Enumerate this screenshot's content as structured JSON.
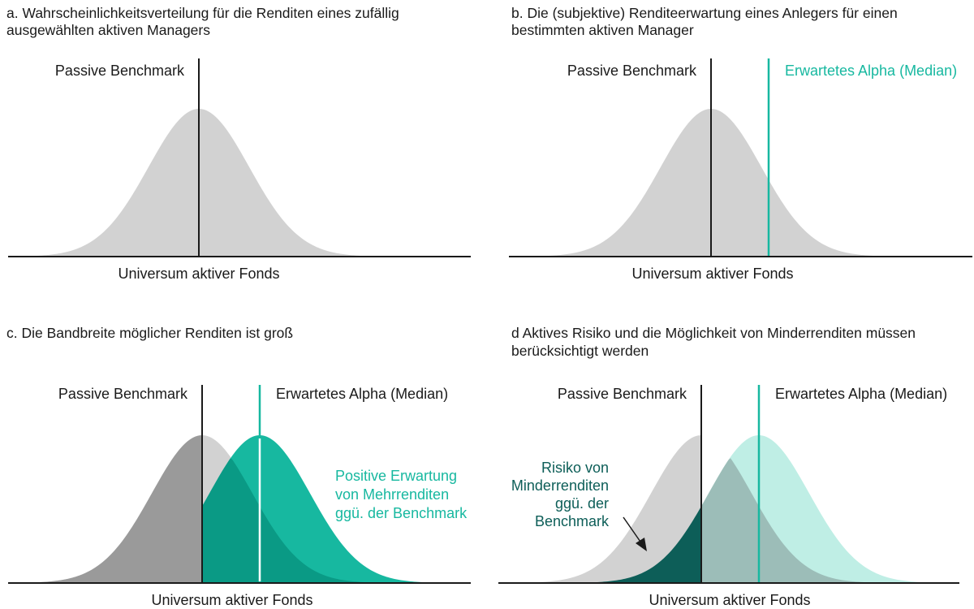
{
  "panels": [
    {
      "title_line1": "a. Wahrscheinlichkeitsverteilung für die Renditen eines zufällig",
      "title_line2": "ausgewählten aktiven Managers",
      "benchmark_label": "Passive Benchmark",
      "xaxis_label": "Universum aktiver Fonds"
    },
    {
      "title_line1": "b. Die (subjektive) Renditeerwartung eines Anlegers für einen",
      "title_line2": "bestimmten aktiven Manager",
      "benchmark_label": "Passive Benchmark",
      "alpha_label": "Erwartetes Alpha (Median)",
      "xaxis_label": "Universum aktiver Fonds"
    },
    {
      "title_line1": "c. Die Bandbreite möglicher Renditen ist groß",
      "benchmark_label": "Passive Benchmark",
      "alpha_label": "Erwartetes Alpha (Median)",
      "positive_line1": "Positive Erwartung",
      "positive_line2": "von Mehrrenditen",
      "positive_line3": "ggü. der Benchmark",
      "xaxis_label": "Universum aktiver Fonds"
    },
    {
      "title_line1": "d Aktives Risiko und die Möglichkeit von Minderrenditen müssen",
      "title_line2": "berücksichtigt werden",
      "benchmark_label": "Passive Benchmark",
      "alpha_label": "Erwartetes Alpha (Median)",
      "risk_line1": "Risiko von",
      "risk_line2": "Minderrenditen",
      "risk_line3": "ggü. der",
      "risk_line4": "Benchmark",
      "xaxis_label": "Universum aktiver Fonds"
    }
  ],
  "colors": {
    "gray": "#d2d2d2",
    "gray_dark": "#9a9a9a",
    "teal": "#17b8a0",
    "teal_mid": "#0a9a85",
    "teal_light": "#bfeee5",
    "teal_gray": "#9cbdb8",
    "dark_teal": "#0d5e58",
    "axis": "#1a1a1a"
  }
}
